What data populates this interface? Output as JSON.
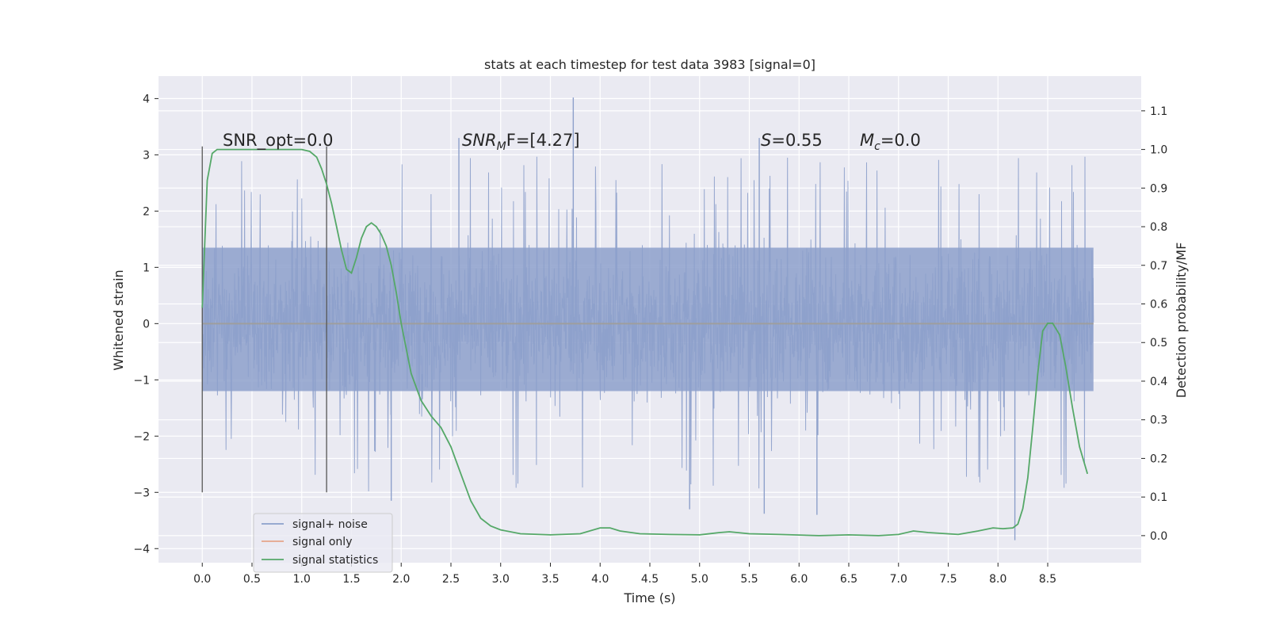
{
  "chart_data": {
    "type": "line",
    "title": "stats at each timestep for test data 3983 [signal=0]",
    "xlabel": "Time (s)",
    "ylabel": "Whitened strain",
    "y2label": "Detection probability/MF",
    "xlim": [
      -0.44,
      9.44
    ],
    "ylim": [
      -4.25,
      4.4
    ],
    "y2lim": [
      -0.07,
      1.19
    ],
    "xticks": [
      0.0,
      0.5,
      1.0,
      1.5,
      2.0,
      2.5,
      3.0,
      3.5,
      4.0,
      4.5,
      5.0,
      5.5,
      6.0,
      6.5,
      7.0,
      7.5,
      8.0,
      8.5
    ],
    "xtick_labels": [
      "0.0",
      "0.5",
      "1.0",
      "1.5",
      "2.0",
      "2.5",
      "3.0",
      "3.5",
      "4.0",
      "4.5",
      "5.0",
      "5.5",
      "6.0",
      "6.5",
      "7.0",
      "7.5",
      "8.0",
      "8.5"
    ],
    "yticks": [
      -4,
      -3,
      -2,
      -1,
      0,
      1,
      2,
      3,
      4
    ],
    "ytick_labels": [
      "−4",
      "−3",
      "−2",
      "−1",
      "0",
      "1",
      "2",
      "3",
      "4"
    ],
    "y2ticks": [
      0.0,
      0.1,
      0.2,
      0.3,
      0.4,
      0.5,
      0.6,
      0.7,
      0.8,
      0.9,
      1.0,
      1.1
    ],
    "y2tick_labels": [
      "0.0",
      "0.1",
      "0.2",
      "0.3",
      "0.4",
      "0.5",
      "0.6",
      "0.7",
      "0.8",
      "0.9",
      "1.0",
      "1.1"
    ],
    "grid": true,
    "legend_position": "lower-left",
    "annotations": {
      "snr_opt": "SNR_opt=0.0",
      "snr_mf_var": "SNR",
      "snr_mf_sub": "M",
      "snr_mf_rest": "F=[4.27]",
      "s_var": "S",
      "s_rest": "=0.55",
      "mc_var": "M",
      "mc_sub": "c",
      "mc_rest": "=0.0"
    },
    "vertical_lines": {
      "x": [
        0.0,
        1.25
      ],
      "y_range": [
        -3.0,
        3.15
      ],
      "color": "#555555"
    },
    "noise_band": {
      "x_range": [
        0.0,
        8.96
      ],
      "core_range": [
        -1.2,
        1.35
      ],
      "typical_extremes": [
        -2.4,
        2.3
      ],
      "max_spikes": [
        {
          "x": 3.73,
          "y": 4.02
        },
        {
          "x": 8.17,
          "y": -3.85
        },
        {
          "x": 6.18,
          "y": -3.4
        },
        {
          "x": 5.65,
          "y": -3.38
        },
        {
          "x": 4.9,
          "y": -3.3
        },
        {
          "x": 1.9,
          "y": -3.15
        },
        {
          "x": 2.58,
          "y": 3.3
        },
        {
          "x": 5.6,
          "y": 3.3
        }
      ]
    },
    "series": [
      {
        "name": "signal+ noise",
        "color": "#8da0cb",
        "style": "dense-noise"
      },
      {
        "name": "signal only",
        "color": "#e5a58a",
        "x": [
          0.0,
          8.96
        ],
        "y": [
          0.0,
          0.0
        ]
      },
      {
        "name": "signal statistics",
        "color": "#55a868",
        "axis": "right",
        "x": [
          0.0,
          0.05,
          0.1,
          0.15,
          0.2,
          0.3,
          0.5,
          0.7,
          0.9,
          1.0,
          1.08,
          1.15,
          1.2,
          1.25,
          1.3,
          1.35,
          1.4,
          1.45,
          1.5,
          1.55,
          1.6,
          1.65,
          1.7,
          1.75,
          1.8,
          1.85,
          1.9,
          1.95,
          2.0,
          2.1,
          2.2,
          2.3,
          2.4,
          2.5,
          2.6,
          2.7,
          2.8,
          2.9,
          3.0,
          3.2,
          3.5,
          3.8,
          4.0,
          4.1,
          4.2,
          4.4,
          4.7,
          5.0,
          5.2,
          5.3,
          5.5,
          5.8,
          6.2,
          6.5,
          6.8,
          7.0,
          7.15,
          7.3,
          7.6,
          7.8,
          7.95,
          8.05,
          8.15,
          8.2,
          8.25,
          8.3,
          8.35,
          8.4,
          8.45,
          8.5,
          8.55,
          8.62,
          8.68,
          8.75,
          8.82,
          8.9
        ],
        "y": [
          0.59,
          0.92,
          0.99,
          1.0,
          1.0,
          1.0,
          1.0,
          1.0,
          1.0,
          1.0,
          0.995,
          0.98,
          0.95,
          0.91,
          0.86,
          0.8,
          0.74,
          0.69,
          0.68,
          0.72,
          0.77,
          0.8,
          0.81,
          0.8,
          0.78,
          0.75,
          0.7,
          0.63,
          0.55,
          0.42,
          0.35,
          0.31,
          0.28,
          0.23,
          0.16,
          0.09,
          0.045,
          0.025,
          0.015,
          0.005,
          0.002,
          0.005,
          0.02,
          0.02,
          0.012,
          0.005,
          0.003,
          0.002,
          0.008,
          0.01,
          0.005,
          0.003,
          0.0,
          0.002,
          0.0,
          0.003,
          0.012,
          0.008,
          0.003,
          0.012,
          0.02,
          0.018,
          0.02,
          0.03,
          0.07,
          0.15,
          0.28,
          0.42,
          0.53,
          0.55,
          0.55,
          0.52,
          0.44,
          0.33,
          0.23,
          0.16
        ]
      }
    ]
  }
}
